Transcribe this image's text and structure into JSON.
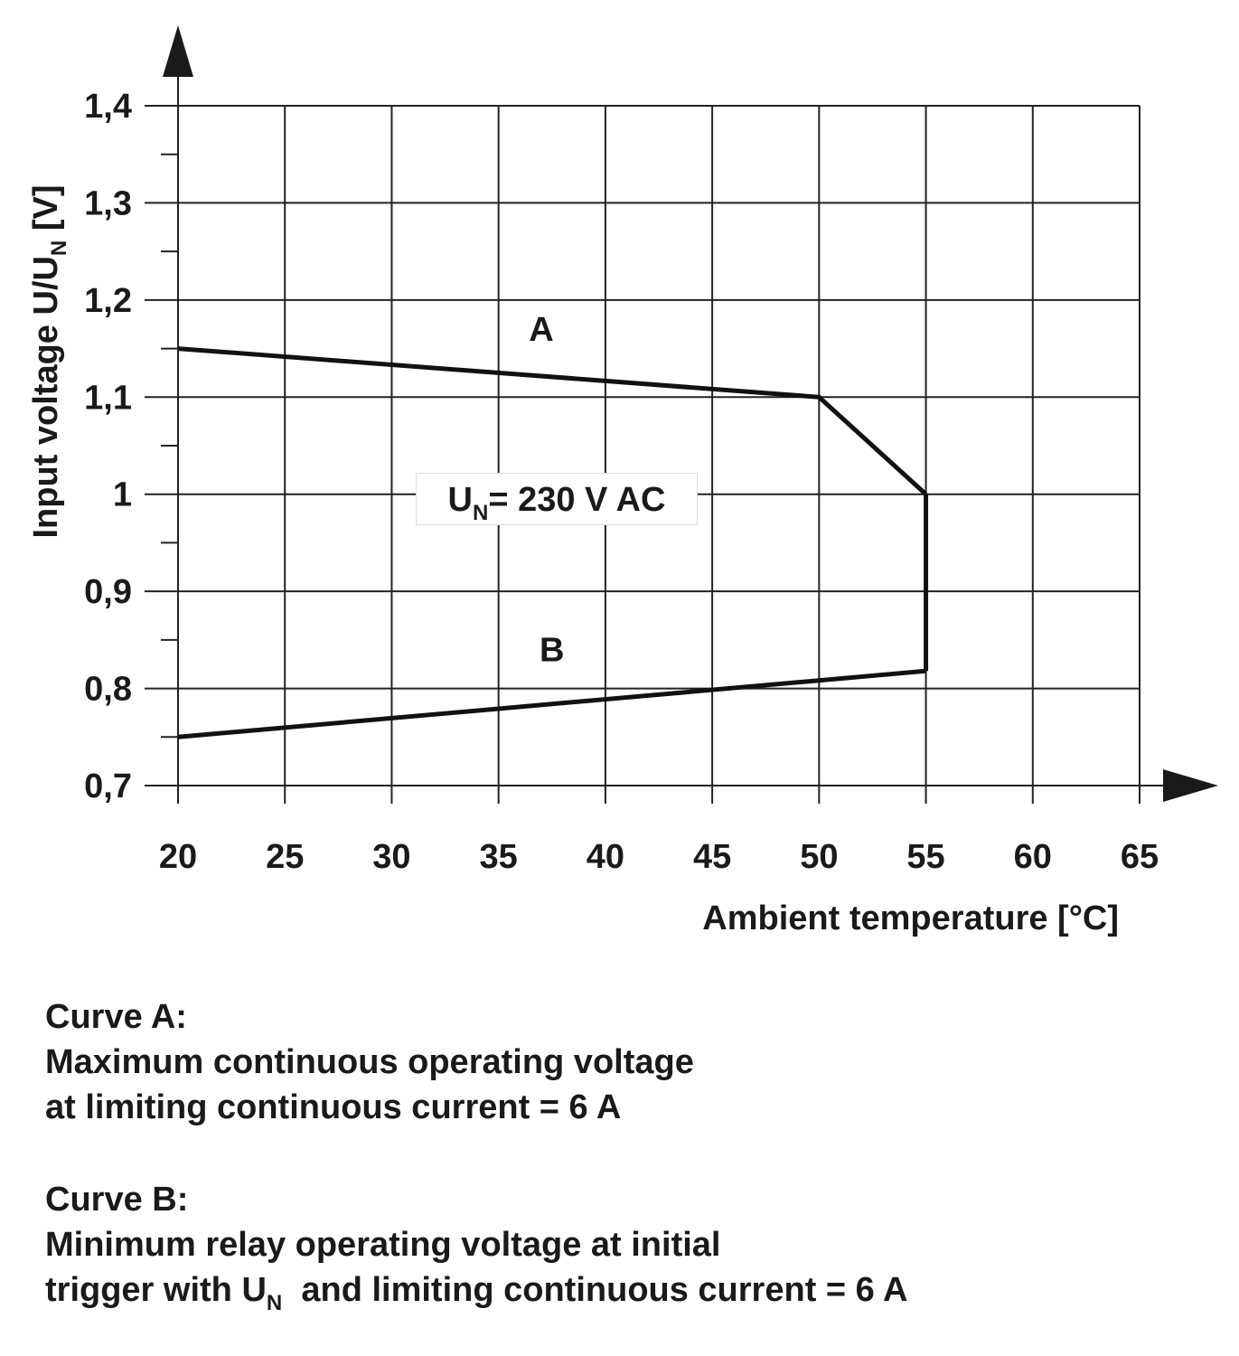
{
  "chart_data": {
    "type": "line",
    "xlabel": "Ambient temperature [°C]",
    "ylabel": {
      "main": "Input voltage U/U",
      "sub": "N",
      "unit": " [V]"
    },
    "xlim": [
      20,
      65
    ],
    "ylim": [
      0.7,
      1.4
    ],
    "x_ticks": [
      "20",
      "25",
      "30",
      "35",
      "40",
      "45",
      "50",
      "55",
      "60",
      "65"
    ],
    "x_tick_values": [
      20,
      25,
      30,
      35,
      40,
      45,
      50,
      55,
      60,
      65
    ],
    "y_ticks": [
      "0,7",
      "0,8",
      "0,9",
      "1",
      "1,1",
      "1,2",
      "1,3",
      "1,4"
    ],
    "y_tick_values": [
      0.7,
      0.8,
      0.9,
      1.0,
      1.1,
      1.2,
      1.3,
      1.4
    ],
    "y_minor_ticks": [
      0.75,
      0.85,
      0.95,
      1.05,
      1.15,
      1.25,
      1.35
    ],
    "grid": true,
    "series": [
      {
        "name": "A",
        "x": [
          20,
          50,
          55
        ],
        "y": [
          1.15,
          1.1,
          1.0
        ],
        "label_at": [
          37,
          1.17
        ]
      },
      {
        "name": "connector",
        "x": [
          55,
          55
        ],
        "y": [
          1.0,
          0.818
        ]
      },
      {
        "name": "B",
        "x": [
          20,
          55
        ],
        "y": [
          0.75,
          0.818
        ],
        "label_at": [
          37.5,
          0.84
        ]
      }
    ],
    "annotation": {
      "main": "U",
      "sub": "N",
      "rest": "= 230 V AC"
    }
  },
  "notes": {
    "curve_a_title": "Curve A:",
    "curve_a_line1": "Maximum continuous operating voltage",
    "curve_a_line2": "at limiting continuous current = 6 A",
    "curve_b_title": "Curve B:",
    "curve_b_line1": "Minimum relay operating voltage at initial",
    "curve_b_line2_a": "trigger with U",
    "curve_b_line2_sub": "N",
    "curve_b_line2_b": "  and limiting continuous current = 6 A"
  }
}
